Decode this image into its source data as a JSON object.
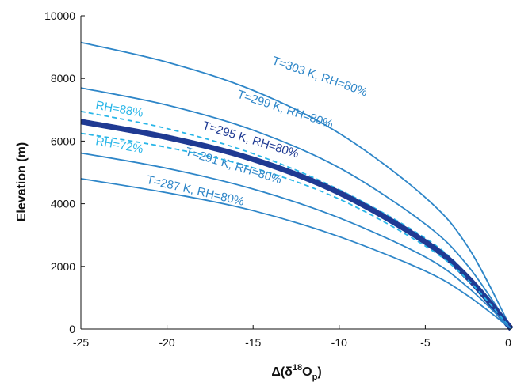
{
  "chart_data": {
    "type": "line",
    "xlabel": {
      "prefix": "Δ(δ",
      "sup": "18",
      "mid": "O",
      "sub": "p",
      "suffix": ")"
    },
    "ylabel": "Elevation (m)",
    "xlim": [
      -25,
      0
    ],
    "ylim": [
      0,
      10000
    ],
    "xticks": [
      -25,
      -20,
      -15,
      -10,
      -5,
      0
    ],
    "yticks": [
      0,
      2000,
      4000,
      6000,
      8000,
      10000
    ],
    "grid": false,
    "series": [
      {
        "name": "T=303 K, RH=80%",
        "style": "solid",
        "weight": "thin",
        "color": "#2e86c8",
        "points": [
          [
            -25,
            9150
          ],
          [
            -20,
            8520
          ],
          [
            -15,
            7620
          ],
          [
            -10,
            6250
          ],
          [
            -5,
            4200
          ],
          [
            -2.5,
            2600
          ],
          [
            0,
            0
          ]
        ]
      },
      {
        "name": "T=299 K, RH=80%",
        "style": "solid",
        "weight": "thin",
        "color": "#2e86c8",
        "points": [
          [
            -25,
            7700
          ],
          [
            -20,
            7150
          ],
          [
            -15,
            6350
          ],
          [
            -10,
            5150
          ],
          [
            -5,
            3350
          ],
          [
            -2.5,
            2000
          ],
          [
            0,
            0
          ]
        ]
      },
      {
        "name": "RH=88%",
        "style": "dashed",
        "weight": "thin",
        "color": "#29b6e8",
        "points": [
          [
            -25,
            6950
          ],
          [
            -20,
            6400
          ],
          [
            -15,
            5600
          ],
          [
            -10,
            4450
          ],
          [
            -5,
            2900
          ],
          [
            -2.5,
            1700
          ],
          [
            0,
            0
          ]
        ]
      },
      {
        "name": "T=295 K, RH=80%",
        "style": "solid",
        "weight": "thick",
        "color": "#1f3a93",
        "points": [
          [
            -25,
            6620
          ],
          [
            -20,
            6120
          ],
          [
            -15,
            5420
          ],
          [
            -10,
            4350
          ],
          [
            -5,
            2780
          ],
          [
            -2.5,
            1620
          ],
          [
            0,
            0
          ]
        ]
      },
      {
        "name": "RH=72%",
        "style": "dashed",
        "weight": "thin",
        "color": "#29b6e8",
        "points": [
          [
            -25,
            6250
          ],
          [
            -20,
            5800
          ],
          [
            -15,
            5150
          ],
          [
            -10,
            4150
          ],
          [
            -5,
            2650
          ],
          [
            -2.5,
            1550
          ],
          [
            0,
            0
          ]
        ]
      },
      {
        "name": "T=291 K, RH=80%",
        "style": "solid",
        "weight": "thin",
        "color": "#2e86c8",
        "points": [
          [
            -25,
            5620
          ],
          [
            -20,
            5130
          ],
          [
            -15,
            4470
          ],
          [
            -10,
            3550
          ],
          [
            -5,
            2300
          ],
          [
            -2.5,
            1320
          ],
          [
            0,
            0
          ]
        ]
      },
      {
        "name": "T=287 K, RH=80%",
        "style": "solid",
        "weight": "thin",
        "color": "#2e86c8",
        "points": [
          [
            -25,
            4800
          ],
          [
            -20,
            4350
          ],
          [
            -15,
            3780
          ],
          [
            -10,
            2950
          ],
          [
            -5,
            1850
          ],
          [
            -2.5,
            1050
          ],
          [
            0,
            0
          ]
        ]
      }
    ],
    "annotations": [
      {
        "text": "T=303 K, RH=80%",
        "series": 0,
        "x": -11.2,
        "y": 7950,
        "rotate": 19,
        "color": "#2e86c8"
      },
      {
        "text": "T=299 K, RH=80%",
        "series": 1,
        "x": -13.2,
        "y": 6900,
        "rotate": 18,
        "color": "#2e86c8"
      },
      {
        "text": "RH=88%",
        "series": 2,
        "x": -22.8,
        "y": 6900,
        "rotate": 10,
        "color": "#29b6e8"
      },
      {
        "text": "T=295 K, RH=80%",
        "series": 3,
        "x": -15.2,
        "y": 5930,
        "rotate": 17,
        "color": "#1f3a93"
      },
      {
        "text": "RH=72%",
        "series": 4,
        "x": -22.8,
        "y": 5750,
        "rotate": 10,
        "color": "#29b6e8"
      },
      {
        "text": "T=291 K, RH=80%",
        "series": 5,
        "x": -16.2,
        "y": 5100,
        "rotate": 17,
        "color": "#2e86c8"
      },
      {
        "text": "T=287 K, RH=80%",
        "series": 6,
        "x": -18.4,
        "y": 4300,
        "rotate": 13,
        "color": "#2e86c8"
      }
    ]
  }
}
